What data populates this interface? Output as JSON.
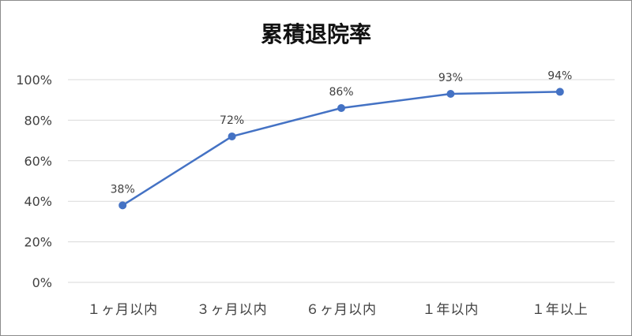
{
  "chart_data": {
    "type": "line",
    "title": "累積退院率",
    "categories": [
      "１ヶ月以内",
      "３ヶ月以内",
      "６ヶ月以内",
      "１年以内",
      "１年以上"
    ],
    "series": [
      {
        "values": [
          38,
          72,
          86,
          93,
          94
        ],
        "labels": [
          "38%",
          "72%",
          "86%",
          "93%",
          "94%"
        ],
        "color": "#4472C4"
      }
    ],
    "ylim": [
      0,
      100
    ],
    "yticks": [
      0,
      20,
      40,
      60,
      80,
      100
    ],
    "ytick_labels": [
      "0%",
      "20%",
      "40%",
      "60%",
      "80%",
      "100%"
    ],
    "grid": true,
    "legend": "none",
    "gridline_color": "#d9d9d9"
  }
}
